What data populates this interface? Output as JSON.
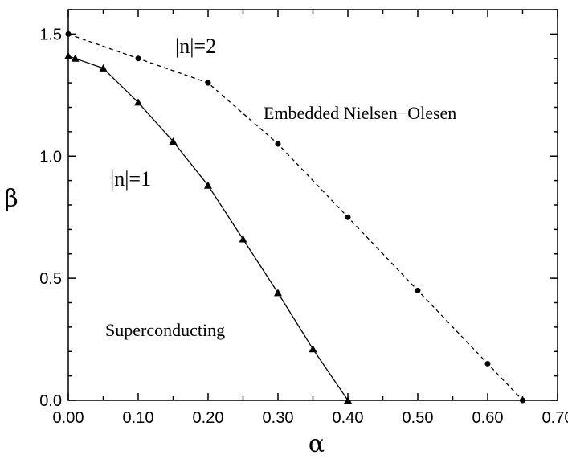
{
  "chart_data": {
    "type": "line",
    "xlabel": "α",
    "ylabel": "β",
    "xlim": [
      0.0,
      0.7
    ],
    "ylim": [
      0.0,
      1.6
    ],
    "xticks": [
      "0.00",
      "0.10",
      "0.20",
      "0.30",
      "0.40",
      "0.50",
      "0.60",
      "0.70"
    ],
    "yticks": [
      "0.0",
      "0.5",
      "1.0",
      "1.5"
    ],
    "grid": false,
    "series": [
      {
        "name": "|n|=1",
        "style": "solid",
        "marker": "triangle",
        "color": "#000000",
        "x": [
          0.0,
          0.01,
          0.05,
          0.1,
          0.15,
          0.2,
          0.25,
          0.3,
          0.35,
          0.4
        ],
        "y": [
          1.41,
          1.4,
          1.36,
          1.22,
          1.06,
          0.88,
          0.66,
          0.44,
          0.21,
          0.0
        ]
      },
      {
        "name": "|n|=2",
        "style": "dashed",
        "marker": "circle",
        "color": "#000000",
        "x": [
          0.0,
          0.1,
          0.2,
          0.3,
          0.4,
          0.5,
          0.6,
          0.65
        ],
        "y": [
          1.5,
          1.4,
          1.3,
          1.05,
          0.75,
          0.45,
          0.15,
          0.0
        ]
      }
    ],
    "annotations": [
      {
        "id": "label-n2",
        "text": "|n|=2"
      },
      {
        "id": "label-n1",
        "text": "|n|=1"
      },
      {
        "id": "region-embedded",
        "text": "Embedded Nielsen−Olesen"
      },
      {
        "id": "region-superconducting",
        "text": "Superconducting"
      }
    ]
  }
}
